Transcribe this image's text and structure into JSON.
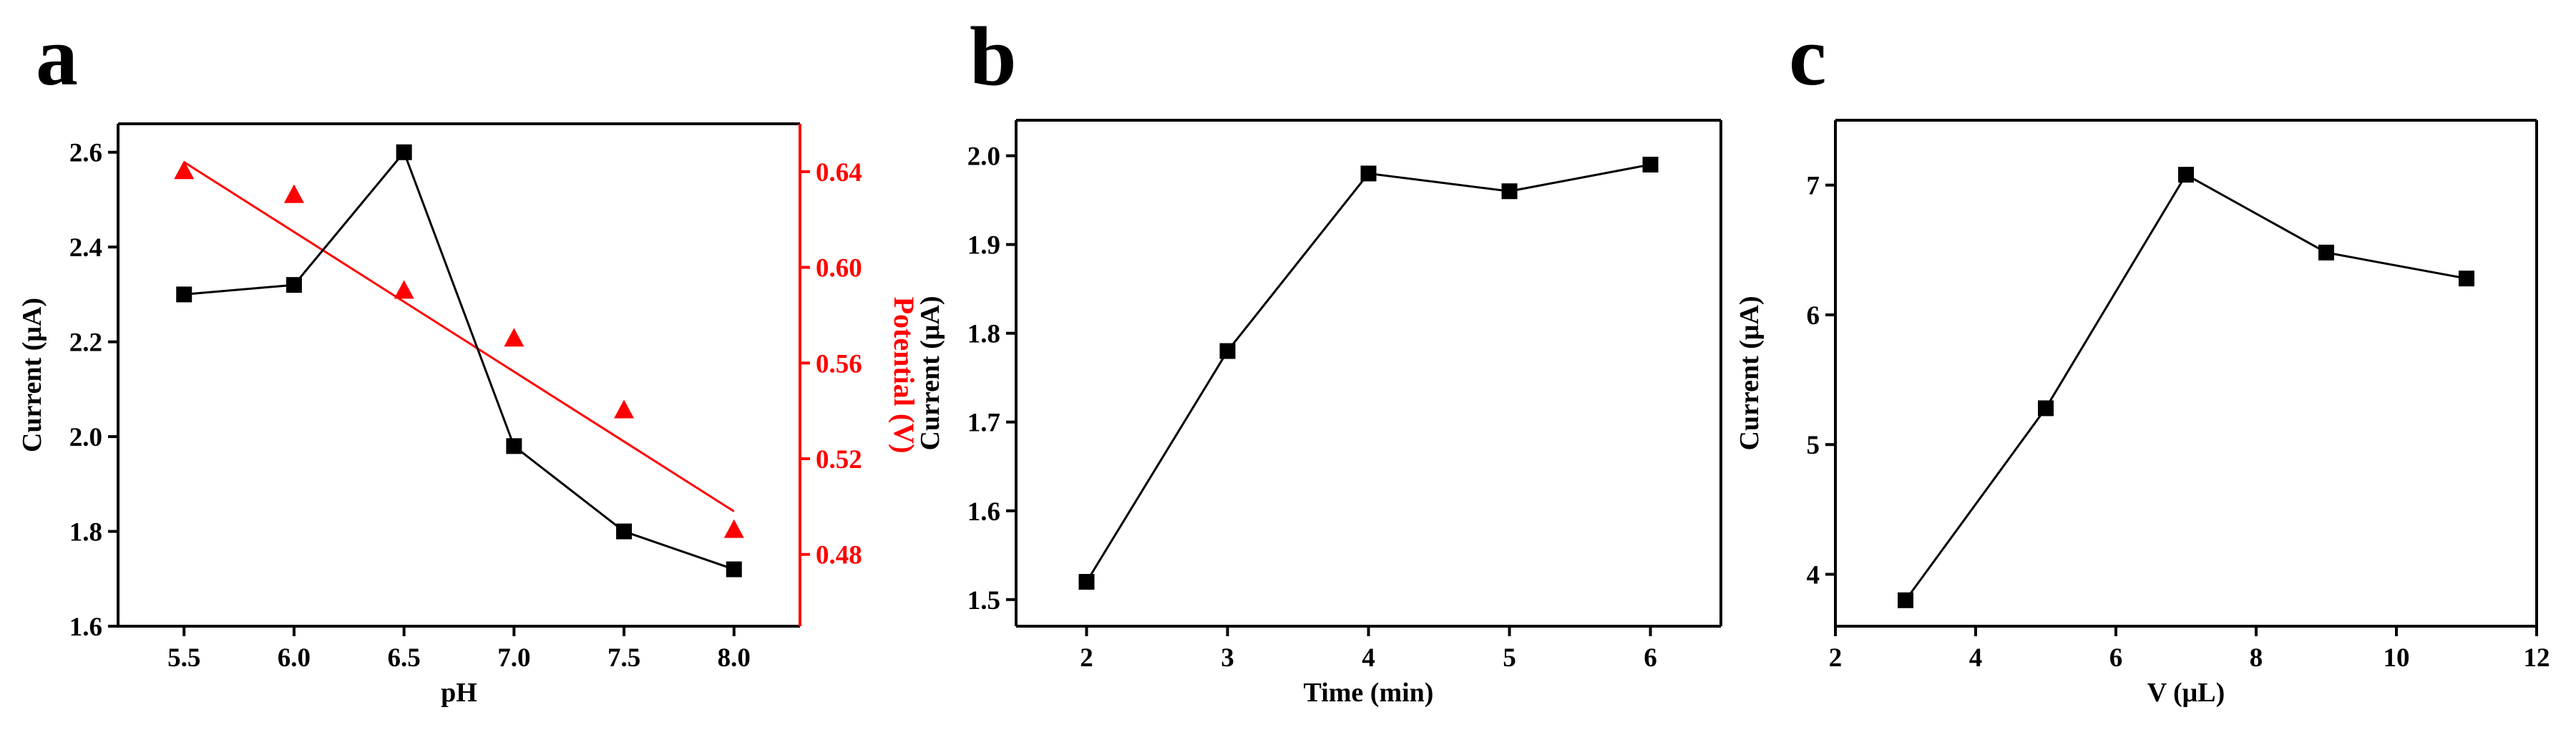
{
  "panels": [
    {
      "letter": "a"
    },
    {
      "letter": "b"
    },
    {
      "letter": "c"
    }
  ],
  "chart_data": [
    {
      "type": "line",
      "panel": "a",
      "xlabel": "pH",
      "ylabel": "Current (μA)",
      "y2label": "Potential (V)",
      "xlim": [
        5.2,
        8.3
      ],
      "ylim": [
        1.6,
        2.66
      ],
      "y2lim": [
        0.45,
        0.66
      ],
      "xticks": [
        5.5,
        6.0,
        6.5,
        7.0,
        7.5,
        8.0
      ],
      "yticks": [
        1.6,
        1.8,
        2.0,
        2.2,
        2.4,
        2.6
      ],
      "y2ticks": [
        0.48,
        0.52,
        0.56,
        0.6,
        0.64
      ],
      "xtick_labels": [
        "5.5",
        "6.0",
        "6.5",
        "7.0",
        "7.5",
        "8.0"
      ],
      "ytick_labels": [
        "1.6",
        "1.8",
        "2.0",
        "2.2",
        "2.4",
        "2.6"
      ],
      "y2tick_labels": [
        "0.48",
        "0.52",
        "0.56",
        "0.60",
        "0.64"
      ],
      "series": [
        {
          "axis": "left",
          "marker": "square",
          "color": "#000000",
          "connect": true,
          "x": [
            5.5,
            6.0,
            6.5,
            7.0,
            7.5,
            8.0
          ],
          "y": [
            2.3,
            2.32,
            2.6,
            1.98,
            1.8,
            1.72
          ]
        },
        {
          "axis": "right",
          "marker": "triangle",
          "color": "#ff0000",
          "connect": false,
          "x": [
            5.5,
            6.0,
            6.5,
            7.0,
            7.5,
            8.0
          ],
          "y": [
            0.64,
            0.63,
            0.59,
            0.57,
            0.54,
            0.49
          ]
        }
      ],
      "fit_line": {
        "axis": "right",
        "color": "#ff0000",
        "x": [
          5.5,
          8.0
        ],
        "y": [
          0.644,
          0.498
        ]
      }
    },
    {
      "type": "line",
      "panel": "b",
      "xlabel": "Time (min)",
      "ylabel": "Current (μA)",
      "xlim": [
        1.5,
        6.5
      ],
      "ylim": [
        1.47,
        2.04
      ],
      "xticks": [
        2,
        3,
        4,
        5,
        6
      ],
      "yticks": [
        1.5,
        1.6,
        1.7,
        1.8,
        1.9,
        2.0
      ],
      "xtick_labels": [
        "2",
        "3",
        "4",
        "5",
        "6"
      ],
      "ytick_labels": [
        "1.5",
        "1.6",
        "1.7",
        "1.8",
        "1.9",
        "2.0"
      ],
      "series": [
        {
          "axis": "left",
          "marker": "square",
          "color": "#000000",
          "connect": true,
          "x": [
            2,
            3,
            4,
            5,
            6
          ],
          "y": [
            1.52,
            1.78,
            1.98,
            1.96,
            1.99
          ]
        }
      ]
    },
    {
      "type": "line",
      "panel": "c",
      "xlabel": "V (μL)",
      "ylabel": "Current (μA)",
      "xlim": [
        2,
        12
      ],
      "ylim": [
        3.6,
        7.5
      ],
      "xticks": [
        2,
        4,
        6,
        8,
        10,
        12
      ],
      "yticks": [
        4,
        5,
        6,
        7
      ],
      "xtick_labels": [
        "2",
        "4",
        "6",
        "8",
        "10",
        "12"
      ],
      "ytick_labels": [
        "4",
        "5",
        "6",
        "7"
      ],
      "series": [
        {
          "axis": "left",
          "marker": "square",
          "color": "#000000",
          "connect": true,
          "x": [
            3,
            5,
            7,
            9,
            11
          ],
          "y": [
            3.8,
            5.28,
            7.08,
            6.48,
            6.28
          ]
        }
      ]
    }
  ]
}
